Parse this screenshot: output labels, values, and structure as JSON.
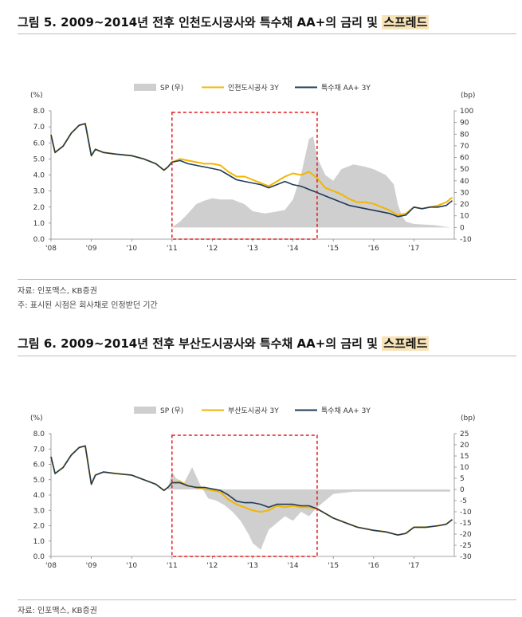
{
  "chart_data": [
    {
      "type": "line",
      "title": "그림 5. 2009~2014년 전후 인천도시공사와 특수채 AA+의 금리 및",
      "title_highlight": "스프레드",
      "y_left_unit": "(%)",
      "y_right_unit": "(bp)",
      "y_left_ticks": [
        "0.0",
        "1.0",
        "2.0",
        "3.0",
        "4.0",
        "5.0",
        "6.0",
        "7.0",
        "8.0"
      ],
      "y_right_ticks": [
        "-10",
        "0",
        "10",
        "20",
        "30",
        "40",
        "50",
        "60",
        "70",
        "80",
        "90",
        "100"
      ],
      "ylim_left": [
        0,
        8
      ],
      "ylim_right": [
        -10,
        100
      ],
      "x_ticks": [
        "'08",
        "'09",
        "'10",
        "'11",
        "'12",
        "'13",
        "'14",
        "'15",
        "'16",
        "'17"
      ],
      "xlim": [
        2008,
        2018
      ],
      "legend": [
        "SP (우)",
        "인천도시공사 3Y",
        "특수채 AA+ 3Y"
      ],
      "highlight_range": [
        2011,
        2014.6
      ],
      "series": [
        {
          "name": "SP (우)",
          "axis": "right",
          "color": "#cfcfcf",
          "x": [
            2008.0,
            2008.4,
            2008.8,
            2009.0,
            2009.2,
            2009.5,
            2010.0,
            2010.5,
            2010.9,
            2011.0,
            2011.2,
            2011.4,
            2011.6,
            2011.8,
            2012.0,
            2012.2,
            2012.5,
            2012.8,
            2013.0,
            2013.3,
            2013.5,
            2013.8,
            2014.0,
            2014.2,
            2014.4,
            2014.5,
            2014.6,
            2014.8,
            2015.0,
            2015.2,
            2015.5,
            2015.8,
            2016.0,
            2016.3,
            2016.5,
            2016.6,
            2016.7,
            2016.8,
            2017.0,
            2017.5,
            2017.9
          ],
          "values": [
            0,
            0,
            0,
            0,
            0,
            0,
            0,
            0,
            0,
            0,
            5,
            12,
            20,
            23,
            25,
            24,
            24,
            20,
            14,
            12,
            13,
            15,
            24,
            45,
            76,
            78,
            60,
            45,
            40,
            50,
            54,
            52,
            50,
            45,
            37,
            20,
            10,
            5,
            3,
            2,
            0
          ]
        },
        {
          "name": "인천도시공사 3Y",
          "axis": "left",
          "color": "#f2b600",
          "x": [
            2008.0,
            2008.1,
            2008.3,
            2008.5,
            2008.7,
            2008.85,
            2009.0,
            2009.1,
            2009.3,
            2009.6,
            2010.0,
            2010.3,
            2010.6,
            2010.8,
            2010.9,
            2011.0,
            2011.2,
            2011.4,
            2011.6,
            2011.8,
            2012.0,
            2012.2,
            2012.4,
            2012.6,
            2012.8,
            2013.0,
            2013.2,
            2013.4,
            2013.6,
            2013.8,
            2014.0,
            2014.2,
            2014.4,
            2014.6,
            2014.8,
            2015.0,
            2015.2,
            2015.4,
            2015.6,
            2015.8,
            2016.0,
            2016.2,
            2016.4,
            2016.6,
            2016.8,
            2017.0,
            2017.2,
            2017.4,
            2017.6,
            2017.8,
            2017.95
          ],
          "values": [
            6.5,
            5.4,
            5.8,
            6.6,
            7.1,
            7.2,
            5.2,
            5.6,
            5.4,
            5.3,
            5.2,
            5.0,
            4.7,
            4.3,
            4.5,
            4.8,
            5.0,
            4.9,
            4.8,
            4.7,
            4.7,
            4.6,
            4.2,
            3.9,
            3.9,
            3.7,
            3.5,
            3.3,
            3.6,
            3.9,
            4.1,
            4.0,
            4.2,
            3.8,
            3.2,
            3.0,
            2.8,
            2.5,
            2.3,
            2.3,
            2.2,
            2.0,
            1.8,
            1.5,
            1.6,
            2.0,
            1.9,
            2.0,
            2.1,
            2.3,
            2.6
          ]
        },
        {
          "name": "특수채 AA+ 3Y",
          "axis": "left",
          "color": "#1f3a5a",
          "x": [
            2008.0,
            2008.1,
            2008.3,
            2008.5,
            2008.7,
            2008.85,
            2009.0,
            2009.1,
            2009.3,
            2009.6,
            2010.0,
            2010.3,
            2010.6,
            2010.8,
            2010.9,
            2011.0,
            2011.2,
            2011.4,
            2011.6,
            2011.8,
            2012.0,
            2012.2,
            2012.4,
            2012.6,
            2012.8,
            2013.0,
            2013.2,
            2013.4,
            2013.6,
            2013.8,
            2014.0,
            2014.2,
            2014.4,
            2014.6,
            2014.8,
            2015.0,
            2015.2,
            2015.4,
            2015.6,
            2015.8,
            2016.0,
            2016.2,
            2016.4,
            2016.6,
            2016.8,
            2017.0,
            2017.2,
            2017.4,
            2017.6,
            2017.8,
            2017.95
          ],
          "values": [
            6.5,
            5.4,
            5.8,
            6.6,
            7.1,
            7.2,
            5.2,
            5.6,
            5.4,
            5.3,
            5.2,
            5.0,
            4.7,
            4.3,
            4.5,
            4.8,
            4.9,
            4.7,
            4.6,
            4.5,
            4.4,
            4.3,
            4.0,
            3.7,
            3.6,
            3.5,
            3.4,
            3.2,
            3.4,
            3.6,
            3.4,
            3.3,
            3.1,
            2.9,
            2.7,
            2.5,
            2.3,
            2.1,
            2.0,
            1.9,
            1.8,
            1.7,
            1.6,
            1.4,
            1.5,
            2.0,
            1.9,
            2.0,
            2.0,
            2.1,
            2.4
          ]
        }
      ],
      "source": "자료: 인포맥스, KB증권",
      "note": "주: 표시된 시점은 회사채로 인정받던 기간"
    },
    {
      "type": "line",
      "title": "그림 6. 2009~2014년 전후 부산도시공사와 특수채 AA+의 금리 및",
      "title_highlight": "스프레드",
      "y_left_unit": "(%)",
      "y_right_unit": "(bp)",
      "y_left_ticks": [
        "0.0",
        "1.0",
        "2.0",
        "3.0",
        "4.0",
        "5.0",
        "6.0",
        "7.0",
        "8.0"
      ],
      "y_right_ticks": [
        "-30",
        "-25",
        "-20",
        "-15",
        "-10",
        "-5",
        "0",
        "5",
        "10",
        "15",
        "20",
        "25"
      ],
      "ylim_left": [
        0,
        8
      ],
      "ylim_right": [
        -30,
        25
      ],
      "x_ticks": [
        "'08",
        "'09",
        "'10",
        "'11",
        "'12",
        "'13",
        "'14",
        "'15",
        "'16",
        "'17"
      ],
      "xlim": [
        2008,
        2018
      ],
      "legend": [
        "SP (우)",
        "부산도시공사 3Y",
        "특수채 AA+ 3Y"
      ],
      "highlight_range": [
        2011,
        2014.6
      ],
      "series": [
        {
          "name": "SP (우)",
          "axis": "right",
          "color": "#cfcfcf",
          "x": [
            2008.0,
            2008.5,
            2009.0,
            2009.5,
            2010.0,
            2010.5,
            2010.9,
            2011.0,
            2011.1,
            2011.3,
            2011.5,
            2011.7,
            2011.9,
            2012.1,
            2012.3,
            2012.5,
            2012.7,
            2012.9,
            2013.0,
            2013.2,
            2013.4,
            2013.6,
            2013.8,
            2014.0,
            2014.2,
            2014.4,
            2014.6,
            2015.0,
            2015.5,
            2016.0,
            2016.5,
            2017.0,
            2017.5,
            2017.9
          ],
          "values": [
            0,
            0,
            0,
            0,
            0,
            0,
            0,
            8,
            5,
            3,
            10,
            2,
            -4,
            -5,
            -7,
            -10,
            -14,
            -20,
            -24,
            -27,
            -18,
            -15,
            -12,
            -14,
            -10,
            -12,
            -8,
            -2,
            -1,
            -1,
            -1,
            -1,
            -1,
            -1
          ]
        },
        {
          "name": "부산도시공사 3Y",
          "axis": "left",
          "color": "#f2b600",
          "x": [
            2008.0,
            2008.1,
            2008.3,
            2008.5,
            2008.7,
            2008.85,
            2009.0,
            2009.1,
            2009.3,
            2009.6,
            2010.0,
            2010.3,
            2010.6,
            2010.8,
            2010.9,
            2011.0,
            2011.2,
            2011.4,
            2011.6,
            2011.8,
            2012.0,
            2012.2,
            2012.4,
            2012.6,
            2012.8,
            2013.0,
            2013.2,
            2013.4,
            2013.6,
            2013.8,
            2014.0,
            2014.2,
            2014.4,
            2014.6,
            2014.8,
            2015.0,
            2015.3,
            2015.6,
            2016.0,
            2016.3,
            2016.6,
            2016.8,
            2017.0,
            2017.3,
            2017.6,
            2017.8,
            2017.95
          ],
          "values": [
            6.5,
            5.4,
            5.8,
            6.6,
            7.1,
            7.2,
            4.7,
            5.3,
            5.5,
            5.4,
            5.3,
            5.0,
            4.7,
            4.3,
            4.5,
            4.8,
            4.9,
            4.6,
            4.5,
            4.4,
            4.3,
            4.2,
            3.7,
            3.4,
            3.2,
            3.0,
            2.9,
            3.0,
            3.3,
            3.2,
            3.3,
            3.2,
            3.2,
            3.1,
            2.8,
            2.5,
            2.2,
            1.9,
            1.7,
            1.6,
            1.4,
            1.5,
            1.9,
            1.9,
            2.0,
            2.1,
            2.4
          ]
        },
        {
          "name": "특수채 AA+ 3Y",
          "axis": "left",
          "color": "#1f3a5a",
          "x": [
            2008.0,
            2008.1,
            2008.3,
            2008.5,
            2008.7,
            2008.85,
            2009.0,
            2009.1,
            2009.3,
            2009.6,
            2010.0,
            2010.3,
            2010.6,
            2010.8,
            2010.9,
            2011.0,
            2011.2,
            2011.4,
            2011.6,
            2011.8,
            2012.0,
            2012.2,
            2012.4,
            2012.6,
            2012.8,
            2013.0,
            2013.2,
            2013.4,
            2013.6,
            2013.8,
            2014.0,
            2014.2,
            2014.4,
            2014.6,
            2014.8,
            2015.0,
            2015.3,
            2015.6,
            2016.0,
            2016.3,
            2016.6,
            2016.8,
            2017.0,
            2017.3,
            2017.6,
            2017.8,
            2017.95
          ],
          "values": [
            6.5,
            5.4,
            5.8,
            6.6,
            7.1,
            7.2,
            4.7,
            5.3,
            5.5,
            5.4,
            5.3,
            5.0,
            4.7,
            4.3,
            4.5,
            4.8,
            4.8,
            4.6,
            4.5,
            4.5,
            4.4,
            4.3,
            4.0,
            3.6,
            3.5,
            3.5,
            3.4,
            3.2,
            3.4,
            3.4,
            3.4,
            3.3,
            3.3,
            3.1,
            2.8,
            2.5,
            2.2,
            1.9,
            1.7,
            1.6,
            1.4,
            1.5,
            1.9,
            1.9,
            2.0,
            2.1,
            2.4
          ]
        }
      ],
      "source": "자료: 인포맥스, KB증권"
    }
  ]
}
